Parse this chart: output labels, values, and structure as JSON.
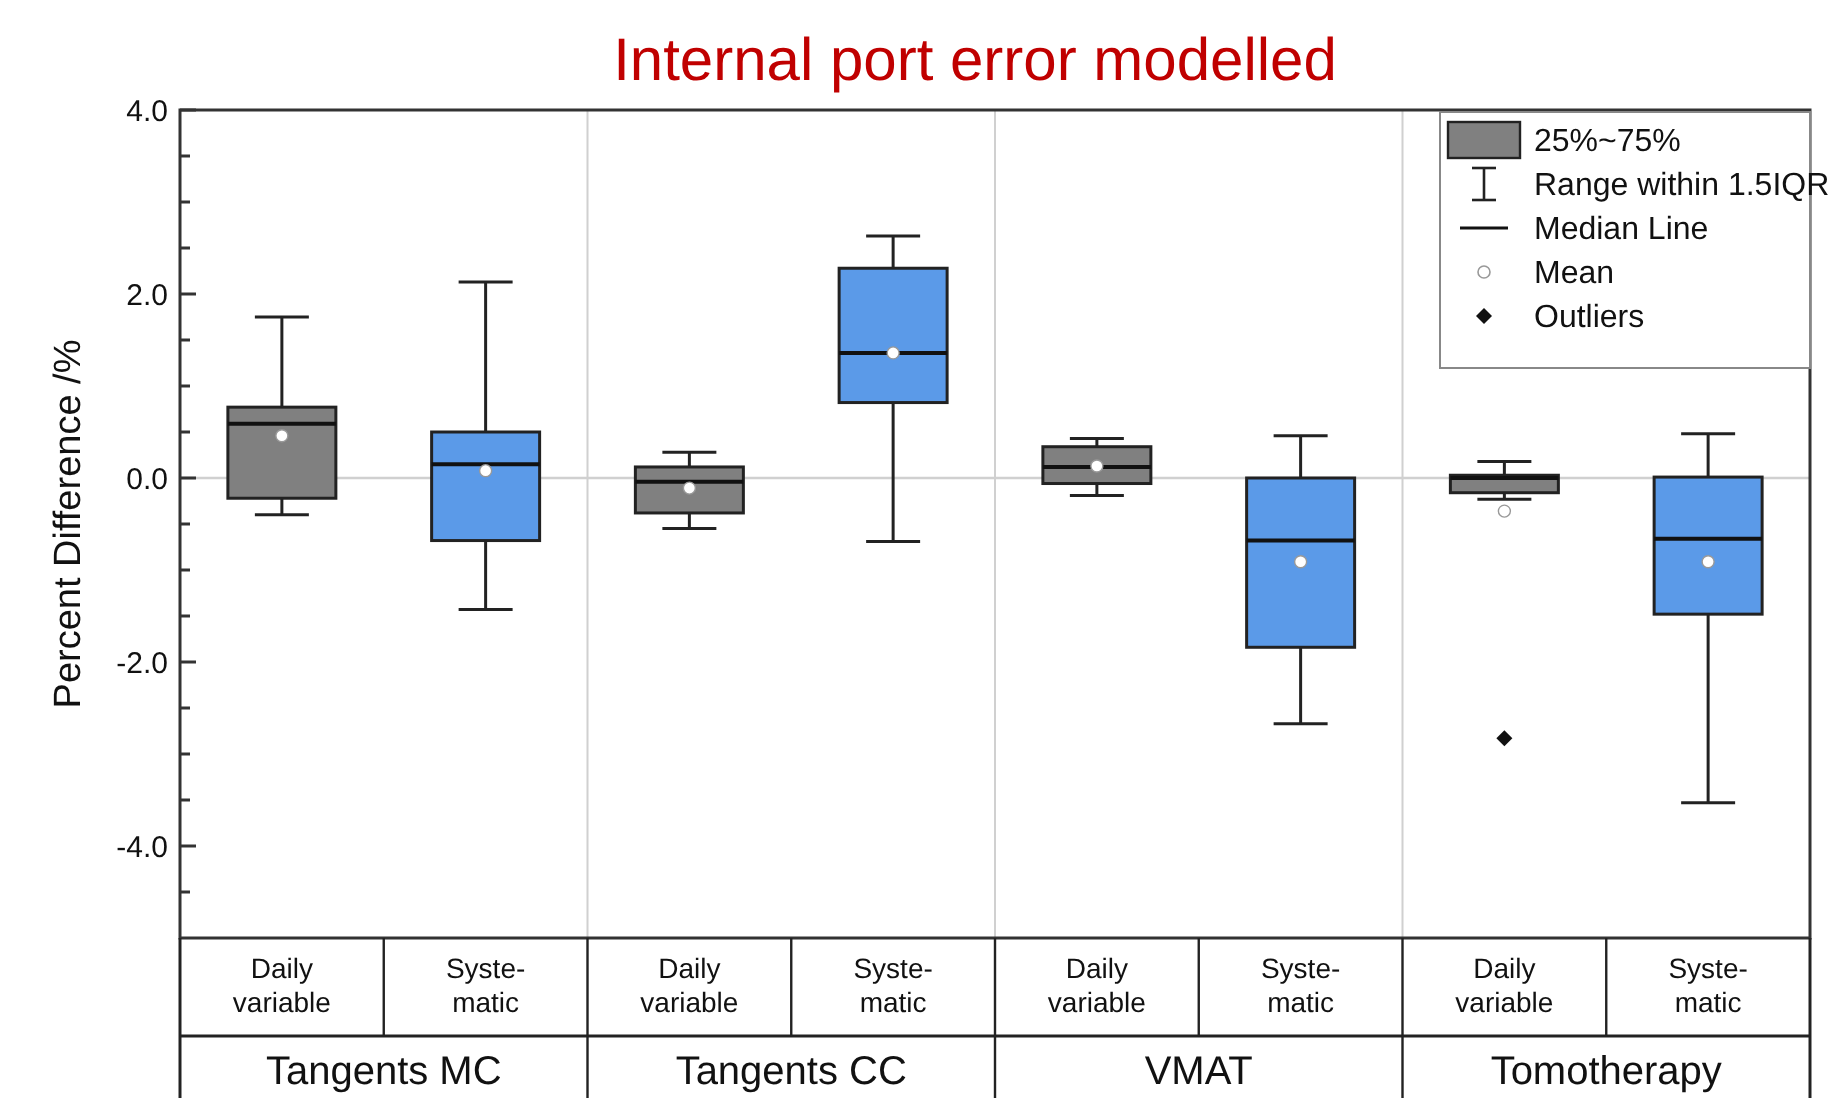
{
  "chart_data": {
    "type": "box",
    "title": "Internal port error modelled",
    "ylabel": "Percent Difference /%",
    "categories": [
      "Daily\nvariable",
      "Syste-\nmatic",
      "Daily\nvariable",
      "Syste-\nmatic",
      "Daily\nvariable",
      "Syste-\nmatic",
      "Daily\nvariable",
      "Syste-\nmatic"
    ],
    "colors": [
      "#808080",
      "#5b9ae8",
      "#808080",
      "#5b9ae8",
      "#808080",
      "#5b9ae8",
      "#808080",
      "#5b9ae8"
    ],
    "boxes": [
      {
        "low": -0.4,
        "q1": -0.22,
        "median": 0.59,
        "q3": 0.77,
        "high": 1.75,
        "mean": 0.46
      },
      {
        "low": -1.43,
        "q1": -0.68,
        "median": 0.15,
        "q3": 0.5,
        "high": 2.13,
        "mean": 0.08
      },
      {
        "low": -0.55,
        "q1": -0.38,
        "median": -0.04,
        "q3": 0.12,
        "high": 0.28,
        "mean": -0.11
      },
      {
        "low": -0.69,
        "q1": 0.82,
        "median": 1.36,
        "q3": 2.28,
        "high": 2.63,
        "mean": 1.36
      },
      {
        "low": -0.19,
        "q1": -0.06,
        "median": 0.12,
        "q3": 0.34,
        "high": 0.43,
        "mean": 0.13
      },
      {
        "low": -2.67,
        "q1": -1.84,
        "median": -0.68,
        "q3": 0.0,
        "high": 0.46,
        "mean": -0.91
      },
      {
        "low": -0.23,
        "q1": -0.16,
        "median": 0.0,
        "q3": 0.03,
        "high": 0.18,
        "mean": -0.36,
        "outliers": [
          -2.83
        ]
      },
      {
        "low": -3.53,
        "q1": -1.48,
        "median": -0.66,
        "q3": 0.01,
        "high": 0.48,
        "mean": -0.91
      }
    ],
    "ylim": [
      -5,
      4
    ],
    "yticks": [
      {
        "value": -4.5,
        "label": null
      },
      {
        "value": -4,
        "label": "-4.0"
      },
      {
        "value": -3.5,
        "label": null
      },
      {
        "value": -3,
        "label": null
      },
      {
        "value": -2.5,
        "label": null
      },
      {
        "value": -2,
        "label": "-2.0"
      },
      {
        "value": -1.5,
        "label": null
      },
      {
        "value": -1,
        "label": null
      },
      {
        "value": -0.5,
        "label": null
      },
      {
        "value": 0,
        "label": "0.0"
      },
      {
        "value": 0.5,
        "label": null
      },
      {
        "value": 1,
        "label": null
      },
      {
        "value": 1.5,
        "label": null
      },
      {
        "value": 2,
        "label": "2.0"
      },
      {
        "value": 2.5,
        "label": null
      },
      {
        "value": 3,
        "label": null
      },
      {
        "value": 3.5,
        "label": null
      },
      {
        "value": 4,
        "label": "4.0"
      }
    ],
    "ref_lines": [
      {
        "axis": "y",
        "value": 0,
        "color": "#d0d0d0"
      }
    ],
    "annotations": [
      "Tangents MC",
      "Tangents CC",
      "VMAT",
      "Tomotherapy",
      "25%~75%",
      "Range within 1.5IQR",
      "Median Line",
      "Mean",
      "Outliers"
    ]
  }
}
